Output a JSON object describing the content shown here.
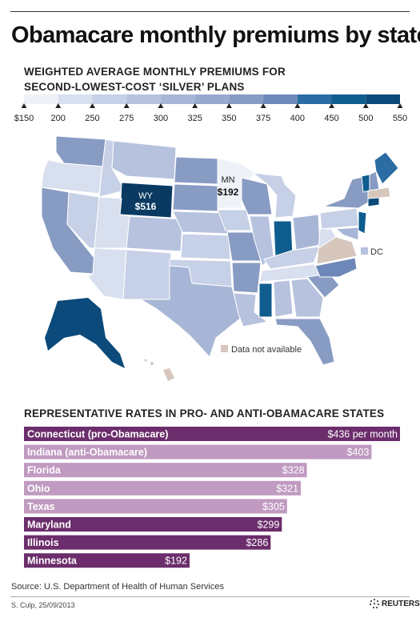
{
  "title": "Obamacare monthly premiums by state",
  "map_subtitle_line1": "WEIGHTED AVERAGE MONTHLY PREMIUMS FOR",
  "map_subtitle_line2": "SECOND-LOWEST-COST ‘SILVER’ PLANS",
  "legend": {
    "ticks": [
      "$150",
      "200",
      "250",
      "275",
      "300",
      "325",
      "350",
      "375",
      "400",
      "450",
      "500",
      "550"
    ],
    "colors": [
      "#eef1f7",
      "#d8dfee",
      "#c6d0e6",
      "#b6c2de",
      "#a7b6d6",
      "#98a9ce",
      "#879bc3",
      "#6d88b8",
      "#2a6ca3",
      "#0f5d8f",
      "#0b4a7a",
      "#0a3a62"
    ]
  },
  "map": {
    "wy_label": "WY",
    "wy_value": "$516",
    "mn_label": "MN",
    "mn_value": "$192",
    "dc_label": "DC",
    "na_label": "Data not available",
    "na_color": "#d6c6bc"
  },
  "bars_title": "REPRESENTATIVE RATES IN PRO- AND ANTI-OBAMACARE STATES",
  "chart_data": [
    {
      "type": "choropleth",
      "title": "WEIGHTED AVERAGE MONTHLY PREMIUMS FOR SECOND-LOWEST-COST ‘SILVER’ PLANS",
      "legend_breaks": [
        150,
        200,
        250,
        275,
        300,
        325,
        350,
        375,
        400,
        450,
        500,
        550
      ],
      "labeled_values": [
        {
          "state": "WY",
          "value": 516
        },
        {
          "state": "MN",
          "value": 192
        }
      ],
      "na_label": "Data not available"
    },
    {
      "type": "bar",
      "title": "REPRESENTATIVE RATES IN PRO- AND ANTI-OBAMACARE STATES",
      "max": 436,
      "bars": [
        {
          "label": "Connecticut (pro-Obamacare)",
          "value": 436,
          "value_label": "$436 per month",
          "color": "#6b2d6b"
        },
        {
          "label": "Indiana (anti-Obamacare)",
          "value": 403,
          "value_label": "$403",
          "color": "#c09ac0"
        },
        {
          "label": "Florida",
          "value": 328,
          "value_label": "$328",
          "color": "#c09ac0"
        },
        {
          "label": "Ohio",
          "value": 321,
          "value_label": "$321",
          "color": "#c09ac0"
        },
        {
          "label": "Texas",
          "value": 305,
          "value_label": "$305",
          "color": "#c09ac0"
        },
        {
          "label": "Maryland",
          "value": 299,
          "value_label": "$299",
          "color": "#6b2d6b"
        },
        {
          "label": "Illinois",
          "value": 286,
          "value_label": "$286",
          "color": "#6b2d6b"
        },
        {
          "label": "Minnesota",
          "value": 192,
          "value_label": "$192",
          "color": "#6b2d6b"
        }
      ]
    }
  ],
  "source": "Source: U.S. Department of Health of Human Services",
  "credit": "S. Culp, 25/09/2013",
  "logo": "REUTERS"
}
